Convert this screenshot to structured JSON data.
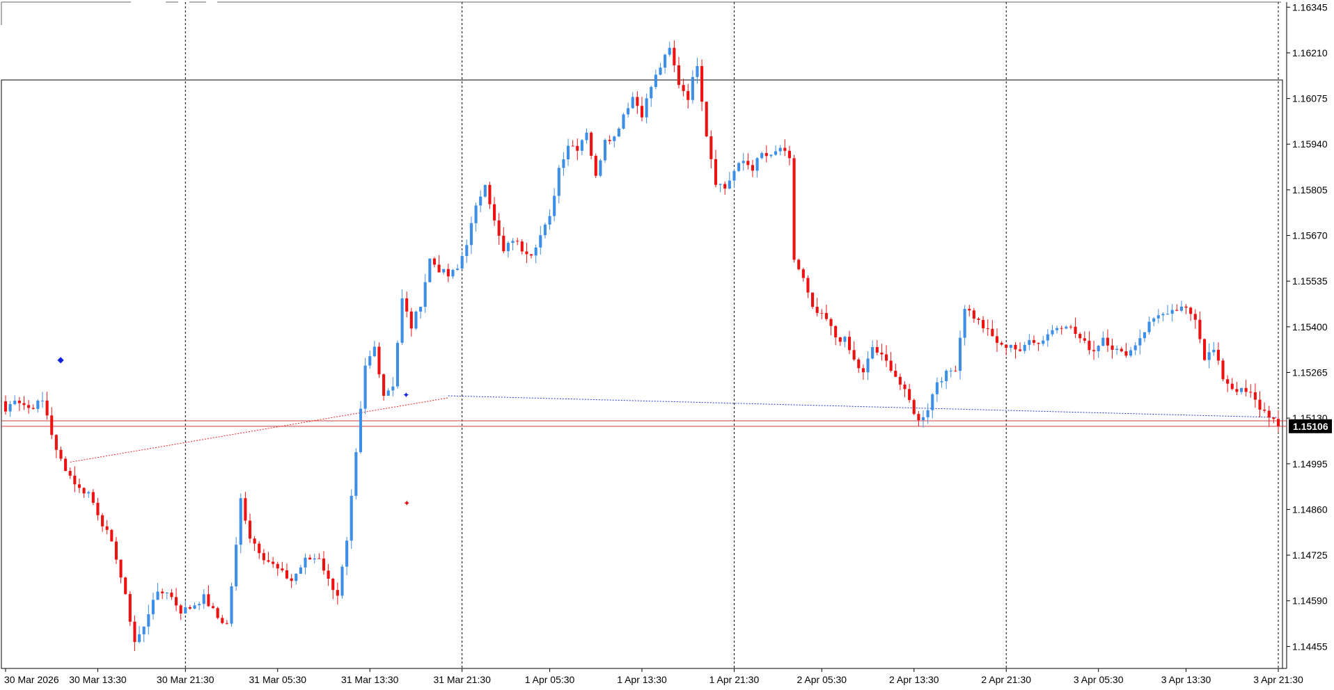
{
  "chart_data": {
    "type": "candlestick",
    "y_axis": {
      "range": [
        1.1439,
        1.1636
      ],
      "ticks": [
        "1.16345",
        "1.16210",
        "1.16075",
        "1.15940",
        "1.15805",
        "1.15670",
        "1.15535",
        "1.15400",
        "1.15265",
        "1.15130",
        "1.14995",
        "1.14860",
        "1.14725",
        "1.14590",
        "1.14455"
      ]
    },
    "x_axis": {
      "labels": [
        "30 Mar 2026",
        "30 Mar 13:30",
        "30 Mar 21:30",
        "31 Mar 05:30",
        "31 Mar 13:30",
        "31 Mar 21:30",
        "1 Apr 05:30",
        "1 Apr 13:30",
        "1 Apr 21:30",
        "2 Apr 05:30",
        "2 Apr 13:30",
        "2 Apr 21:30",
        "3 Apr 05:30",
        "3 Apr 13:30",
        "3 Apr 21:30"
      ]
    },
    "current_price": "1.15106",
    "horizontal_levels": [
      1.15122,
      1.15106
    ],
    "period_separators": [
      "30 Mar 21:30",
      "31 Mar 21:30",
      "1 Apr 21:30",
      "2 Apr 21:30",
      "3 Apr 21:30"
    ],
    "colors": {
      "up": "#3d8ee6",
      "down": "#ee1111",
      "level_line": "#c83c3c",
      "blue_avg": "#2233cc",
      "red_avg": "#ee2222",
      "grid_sep": "#000000",
      "price_tag_bg": "#000000",
      "price_tag_fg": "#ffffff"
    },
    "anchors": [
      {
        "i": 0,
        "c": 1.1515
      },
      {
        "i": 2,
        "c": 1.1519
      },
      {
        "i": 5,
        "c": 1.1516
      },
      {
        "i": 8,
        "c": 1.1518
      },
      {
        "i": 9,
        "c": 1.1514
      },
      {
        "i": 11,
        "c": 1.1503
      },
      {
        "i": 14,
        "c": 1.1496
      },
      {
        "i": 16,
        "c": 1.1492
      },
      {
        "i": 18,
        "c": 1.1491
      },
      {
        "i": 20,
        "c": 1.1485
      },
      {
        "i": 22,
        "c": 1.1479
      },
      {
        "i": 24,
        "c": 1.1472
      },
      {
        "i": 26,
        "c": 1.146
      },
      {
        "i": 28,
        "c": 1.1447
      },
      {
        "i": 30,
        "c": 1.1451
      },
      {
        "i": 32,
        "c": 1.146
      },
      {
        "i": 35,
        "c": 1.1462
      },
      {
        "i": 38,
        "c": 1.1456
      },
      {
        "i": 40,
        "c": 1.1457
      },
      {
        "i": 43,
        "c": 1.146
      },
      {
        "i": 46,
        "c": 1.1454
      },
      {
        "i": 48,
        "c": 1.1452
      },
      {
        "i": 50,
        "c": 1.1475
      },
      {
        "i": 51,
        "c": 1.1489
      },
      {
        "i": 53,
        "c": 1.1478
      },
      {
        "i": 56,
        "c": 1.1472
      },
      {
        "i": 60,
        "c": 1.1467
      },
      {
        "i": 62,
        "c": 1.1465
      },
      {
        "i": 65,
        "c": 1.1471
      },
      {
        "i": 68,
        "c": 1.1472
      },
      {
        "i": 70,
        "c": 1.1465
      },
      {
        "i": 72,
        "c": 1.1461
      },
      {
        "i": 74,
        "c": 1.1476
      },
      {
        "i": 76,
        "c": 1.1502
      },
      {
        "i": 78,
        "c": 1.1528
      },
      {
        "i": 80,
        "c": 1.1534
      },
      {
        "i": 82,
        "c": 1.152
      },
      {
        "i": 84,
        "c": 1.1523
      },
      {
        "i": 86,
        "c": 1.1548
      },
      {
        "i": 88,
        "c": 1.154
      },
      {
        "i": 90,
        "c": 1.1547
      },
      {
        "i": 92,
        "c": 1.156
      },
      {
        "i": 94,
        "c": 1.1557
      },
      {
        "i": 96,
        "c": 1.1555
      },
      {
        "i": 98,
        "c": 1.1557
      },
      {
        "i": 100,
        "c": 1.1565
      },
      {
        "i": 102,
        "c": 1.1575
      },
      {
        "i": 104,
        "c": 1.1583
      },
      {
        "i": 106,
        "c": 1.1571
      },
      {
        "i": 108,
        "c": 1.1562
      },
      {
        "i": 110,
        "c": 1.1566
      },
      {
        "i": 112,
        "c": 1.1563
      },
      {
        "i": 114,
        "c": 1.1562
      },
      {
        "i": 116,
        "c": 1.1567
      },
      {
        "i": 118,
        "c": 1.1572
      },
      {
        "i": 120,
        "c": 1.1587
      },
      {
        "i": 122,
        "c": 1.1594
      },
      {
        "i": 124,
        "c": 1.1593
      },
      {
        "i": 126,
        "c": 1.1598
      },
      {
        "i": 128,
        "c": 1.1584
      },
      {
        "i": 130,
        "c": 1.1596
      },
      {
        "i": 132,
        "c": 1.1596
      },
      {
        "i": 134,
        "c": 1.1603
      },
      {
        "i": 136,
        "c": 1.1608
      },
      {
        "i": 138,
        "c": 1.1603
      },
      {
        "i": 140,
        "c": 1.1611
      },
      {
        "i": 142,
        "c": 1.1617
      },
      {
        "i": 144,
        "c": 1.1622
      },
      {
        "i": 146,
        "c": 1.1612
      },
      {
        "i": 148,
        "c": 1.1608
      },
      {
        "i": 150,
        "c": 1.1618
      },
      {
        "i": 152,
        "c": 1.1597
      },
      {
        "i": 154,
        "c": 1.1583
      },
      {
        "i": 156,
        "c": 1.1581
      },
      {
        "i": 158,
        "c": 1.1586
      },
      {
        "i": 160,
        "c": 1.1589
      },
      {
        "i": 162,
        "c": 1.1587
      },
      {
        "i": 164,
        "c": 1.1591
      },
      {
        "i": 166,
        "c": 1.159
      },
      {
        "i": 168,
        "c": 1.1593
      },
      {
        "i": 170,
        "c": 1.1589
      },
      {
        "i": 171,
        "c": 1.156
      },
      {
        "i": 173,
        "c": 1.1554
      },
      {
        "i": 175,
        "c": 1.1545
      },
      {
        "i": 178,
        "c": 1.1542
      },
      {
        "i": 180,
        "c": 1.1537
      },
      {
        "i": 182,
        "c": 1.1536
      },
      {
        "i": 184,
        "c": 1.153
      },
      {
        "i": 186,
        "c": 1.1526
      },
      {
        "i": 188,
        "c": 1.1534
      },
      {
        "i": 190,
        "c": 1.1531
      },
      {
        "i": 192,
        "c": 1.1528
      },
      {
        "i": 194,
        "c": 1.1523
      },
      {
        "i": 196,
        "c": 1.1518
      },
      {
        "i": 198,
        "c": 1.1512
      },
      {
        "i": 200,
        "c": 1.1516
      },
      {
        "i": 202,
        "c": 1.1524
      },
      {
        "i": 204,
        "c": 1.1526
      },
      {
        "i": 206,
        "c": 1.1528
      },
      {
        "i": 208,
        "c": 1.1546
      },
      {
        "i": 210,
        "c": 1.1543
      },
      {
        "i": 212,
        "c": 1.154
      },
      {
        "i": 214,
        "c": 1.1537
      },
      {
        "i": 216,
        "c": 1.1534
      },
      {
        "i": 218,
        "c": 1.1535
      },
      {
        "i": 220,
        "c": 1.1532
      },
      {
        "i": 222,
        "c": 1.1537
      },
      {
        "i": 224,
        "c": 1.1535
      },
      {
        "i": 226,
        "c": 1.1538
      },
      {
        "i": 228,
        "c": 1.154
      },
      {
        "i": 230,
        "c": 1.1541
      },
      {
        "i": 232,
        "c": 1.1538
      },
      {
        "i": 234,
        "c": 1.1535
      },
      {
        "i": 236,
        "c": 1.1533
      },
      {
        "i": 238,
        "c": 1.1537
      },
      {
        "i": 240,
        "c": 1.1534
      },
      {
        "i": 242,
        "c": 1.1532
      },
      {
        "i": 244,
        "c": 1.1533
      },
      {
        "i": 246,
        "c": 1.1537
      },
      {
        "i": 248,
        "c": 1.1541
      },
      {
        "i": 250,
        "c": 1.1544
      },
      {
        "i": 252,
        "c": 1.1543
      },
      {
        "i": 254,
        "c": 1.1545
      },
      {
        "i": 256,
        "c": 1.1545
      },
      {
        "i": 258,
        "c": 1.1543
      },
      {
        "i": 260,
        "c": 1.1531
      },
      {
        "i": 262,
        "c": 1.1533
      },
      {
        "i": 264,
        "c": 1.1525
      },
      {
        "i": 266,
        "c": 1.1522
      },
      {
        "i": 268,
        "c": 1.1521
      },
      {
        "i": 270,
        "c": 1.152
      },
      {
        "i": 272,
        "c": 1.1516
      },
      {
        "i": 274,
        "c": 1.1514
      },
      {
        "i": 276,
        "c": 1.15106
      }
    ]
  }
}
